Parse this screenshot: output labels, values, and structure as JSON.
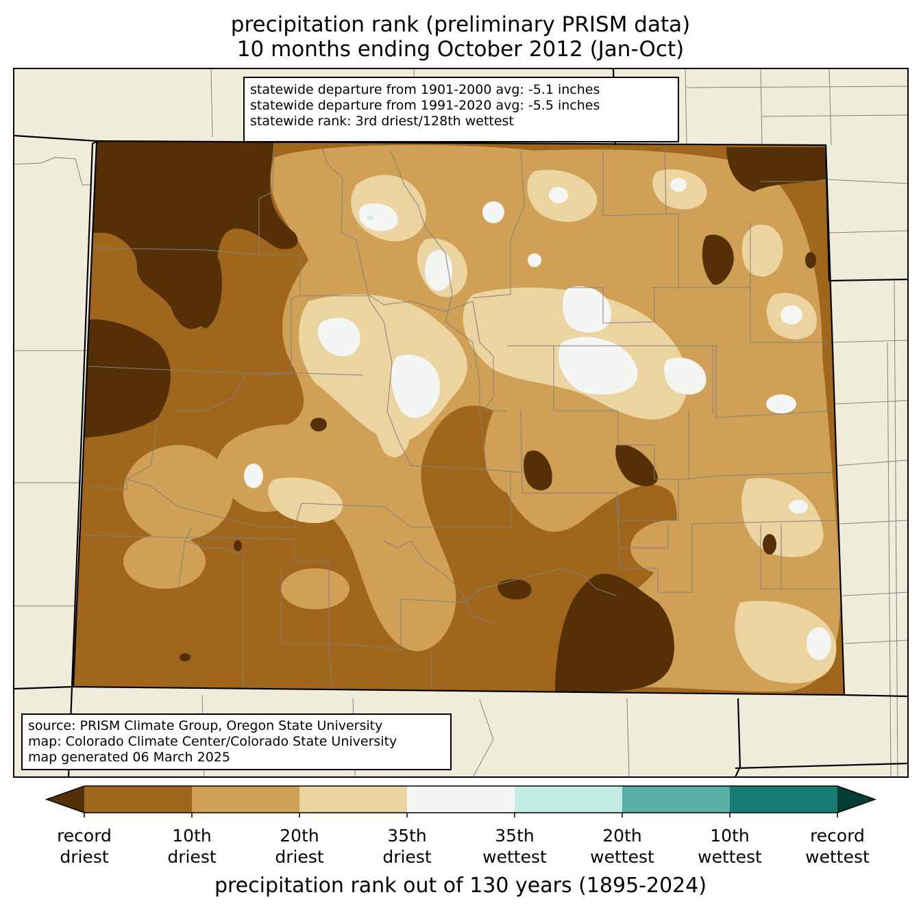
{
  "title_line1": "precipitation rank (preliminary PRISM data)",
  "title_line2": "10 months ending October 2012 (Jan-Oct)",
  "stats": {
    "line1": "statewide departure from 1901-2000 avg: -5.1 inches",
    "line2": "statewide departure from 1991-2020 avg: -5.5 inches",
    "line3": "statewide rank: 3rd driest/128th wettest"
  },
  "source": {
    "line1": "source: PRISM Climate Group, Oregon State University",
    "line2": "map: Colorado Climate Center/Colorado State University",
    "line3": "map generated 06 March 2025"
  },
  "colorbar": {
    "label": "precipitation rank out of 130 years (1895-2024)",
    "colors": [
      "#553006",
      "#a0661b",
      "#cfa055",
      "#ebd49f",
      "#f4f6f4",
      "#c5ebe5",
      "#59b1a6",
      "#187c74",
      "#023e35"
    ],
    "tick_labels": [
      {
        "top": "record",
        "bottom": "driest"
      },
      {
        "top": "10th",
        "bottom": "driest"
      },
      {
        "top": "20th",
        "bottom": "driest"
      },
      {
        "top": "35th",
        "bottom": "driest"
      },
      {
        "top": "35th",
        "bottom": "wettest"
      },
      {
        "top": "20th",
        "bottom": "wettest"
      },
      {
        "top": "10th",
        "bottom": "wettest"
      },
      {
        "top": "record",
        "bottom": "wettest"
      }
    ]
  },
  "map_colors": {
    "land_outside": "#efedd9",
    "county_lines": "#808080",
    "state_lines": "#000000"
  }
}
